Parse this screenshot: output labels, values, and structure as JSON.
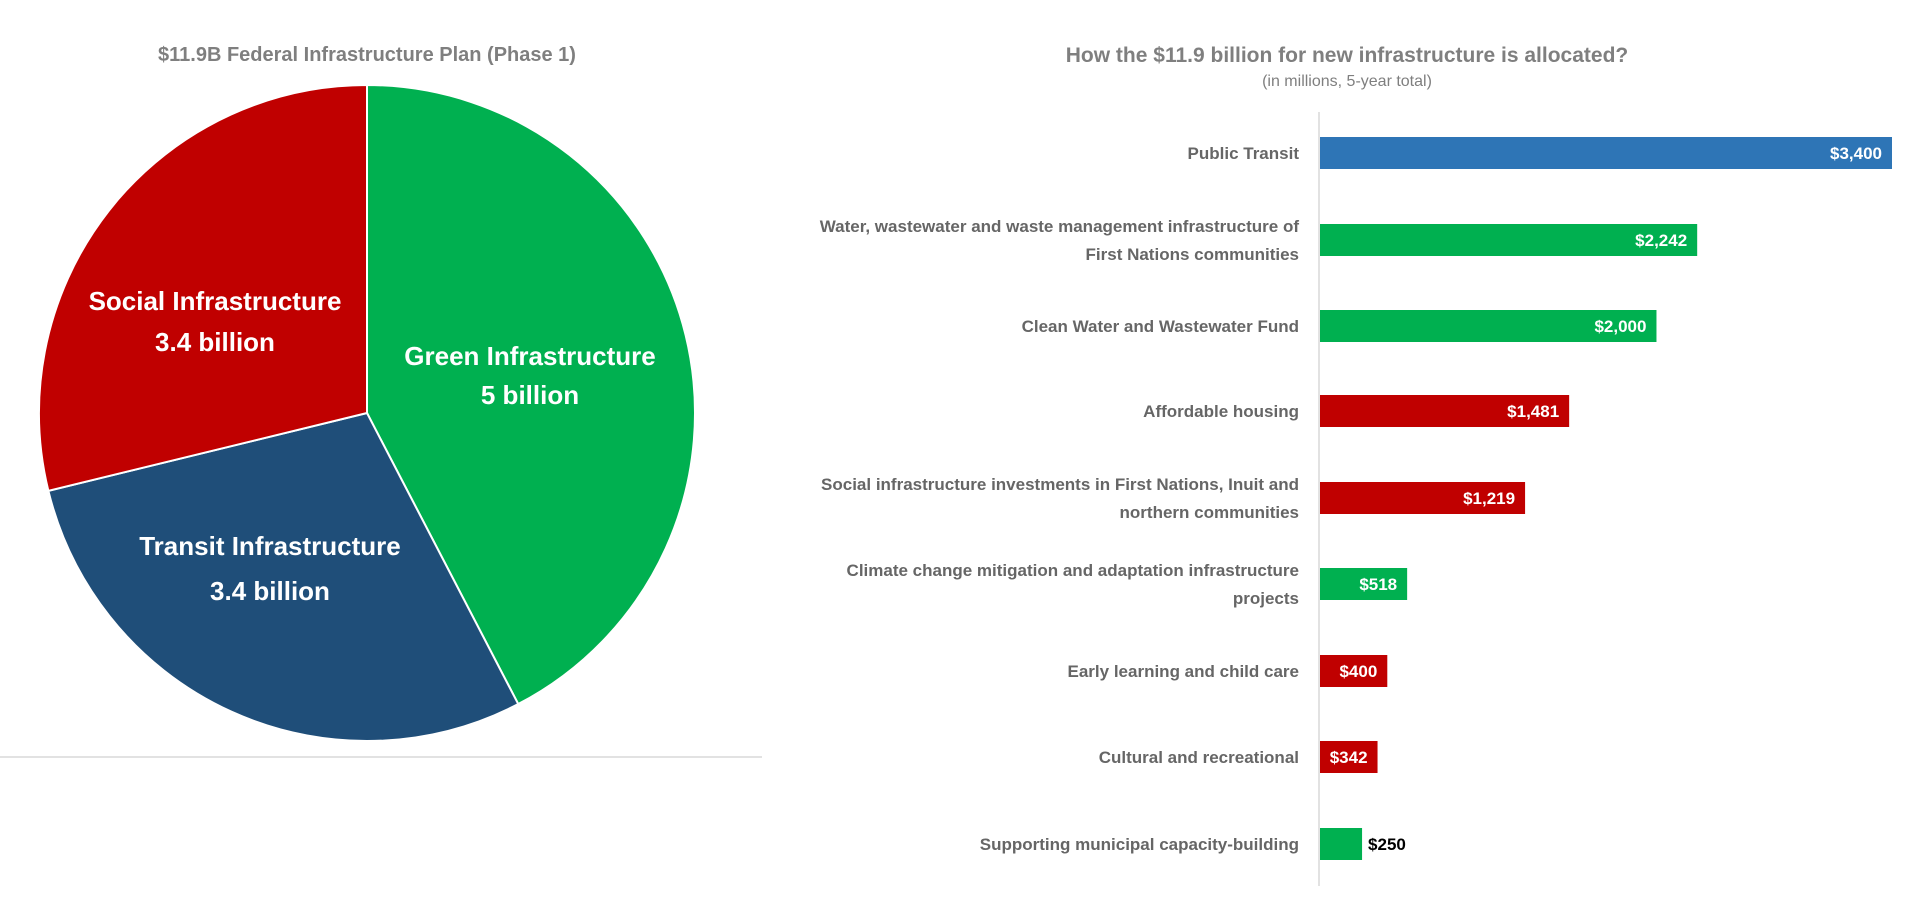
{
  "chart_data": [
    {
      "type": "pie",
      "title": "$11.9B Federal Infrastructure Plan (Phase 1)",
      "slices": [
        {
          "name": "Green Infrastructure",
          "value": 5.0,
          "label_line1": "Green Infrastructure",
          "label_line2": "5 billion",
          "color": "#00b050"
        },
        {
          "name": "Transit Infrastructure",
          "value": 3.4,
          "label_line1": "Transit Infrastructure",
          "label_line2": "3.4 billion",
          "color": "#1f4e79"
        },
        {
          "name": "Social Infrastructure",
          "value": 3.4,
          "label_line1": "Social Infrastructure",
          "label_line2": "3.4 billion",
          "color": "#c00000"
        }
      ]
    },
    {
      "type": "bar",
      "orientation": "horizontal",
      "title": "How the $11.9 billion for new infrastructure is allocated?",
      "subtitle": "(in millions, 5-year total)",
      "xlim": [
        0,
        3400
      ],
      "bars": [
        {
          "lines": [
            "Public Transit"
          ],
          "value": 3400,
          "label": "$3,400",
          "color": "#2e75b6"
        },
        {
          "lines": [
            "Water, wastewater and waste management infrastructure of",
            "First Nations communities"
          ],
          "value": 2242,
          "label": "$2,242",
          "color": "#00b050"
        },
        {
          "lines": [
            "Clean Water and Wastewater Fund"
          ],
          "value": 2000,
          "label": "$2,000",
          "color": "#00b050"
        },
        {
          "lines": [
            "Affordable housing"
          ],
          "value": 1481,
          "label": "$1,481",
          "color": "#c00000"
        },
        {
          "lines": [
            "Social infrastructure investments in First Nations, Inuit and",
            "northern communities"
          ],
          "value": 1219,
          "label": "$1,219",
          "color": "#c00000"
        },
        {
          "lines": [
            "Climate change mitigation and adaptation infrastructure",
            "projects"
          ],
          "value": 518,
          "label": "$518",
          "color": "#00b050"
        },
        {
          "lines": [
            "Early learning and child care"
          ],
          "value": 400,
          "label": "$400",
          "color": "#c00000"
        },
        {
          "lines": [
            "Cultural and recreational"
          ],
          "value": 342,
          "label": "$342",
          "color": "#c00000"
        },
        {
          "lines": [
            "Supporting municipal capacity-building"
          ],
          "value": 250,
          "label": "$250",
          "color": "#00b050"
        }
      ]
    }
  ]
}
